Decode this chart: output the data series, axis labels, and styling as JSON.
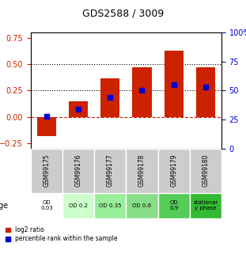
{
  "title": "GDS2588 / 3009",
  "samples": [
    "GSM99175",
    "GSM99176",
    "GSM99177",
    "GSM99178",
    "GSM99179",
    "GSM99180"
  ],
  "log2_ratio": [
    -0.18,
    0.15,
    0.37,
    0.47,
    0.63,
    0.47
  ],
  "percentile_rank": [
    28,
    34,
    44,
    50,
    55,
    53
  ],
  "bar_color": "#cc2200",
  "dot_color": "#0000cc",
  "ylim_left": [
    -0.3,
    0.8
  ],
  "ylim_right": [
    0,
    100
  ],
  "yticks_left": [
    -0.25,
    0,
    0.25,
    0.5,
    0.75
  ],
  "yticks_right": [
    0,
    25,
    50,
    75,
    100
  ],
  "hlines": [
    0.25,
    0.5
  ],
  "zero_line": 0,
  "age_labels": [
    "OD\n0.03",
    "OD 0.2",
    "OD 0.35",
    "OD 0.6",
    "OD\n0.9",
    "stationar\ny phase"
  ],
  "age_colors": [
    "#ffffff",
    "#ccffcc",
    "#99ee99",
    "#88dd88",
    "#55cc55",
    "#33bb33"
  ],
  "gsm_colors": [
    "#cccccc",
    "#cccccc",
    "#cccccc",
    "#cccccc",
    "#cccccc",
    "#cccccc"
  ],
  "legend_red": "log2 ratio",
  "legend_blue": "percentile rank within the sample",
  "age_label": "age"
}
